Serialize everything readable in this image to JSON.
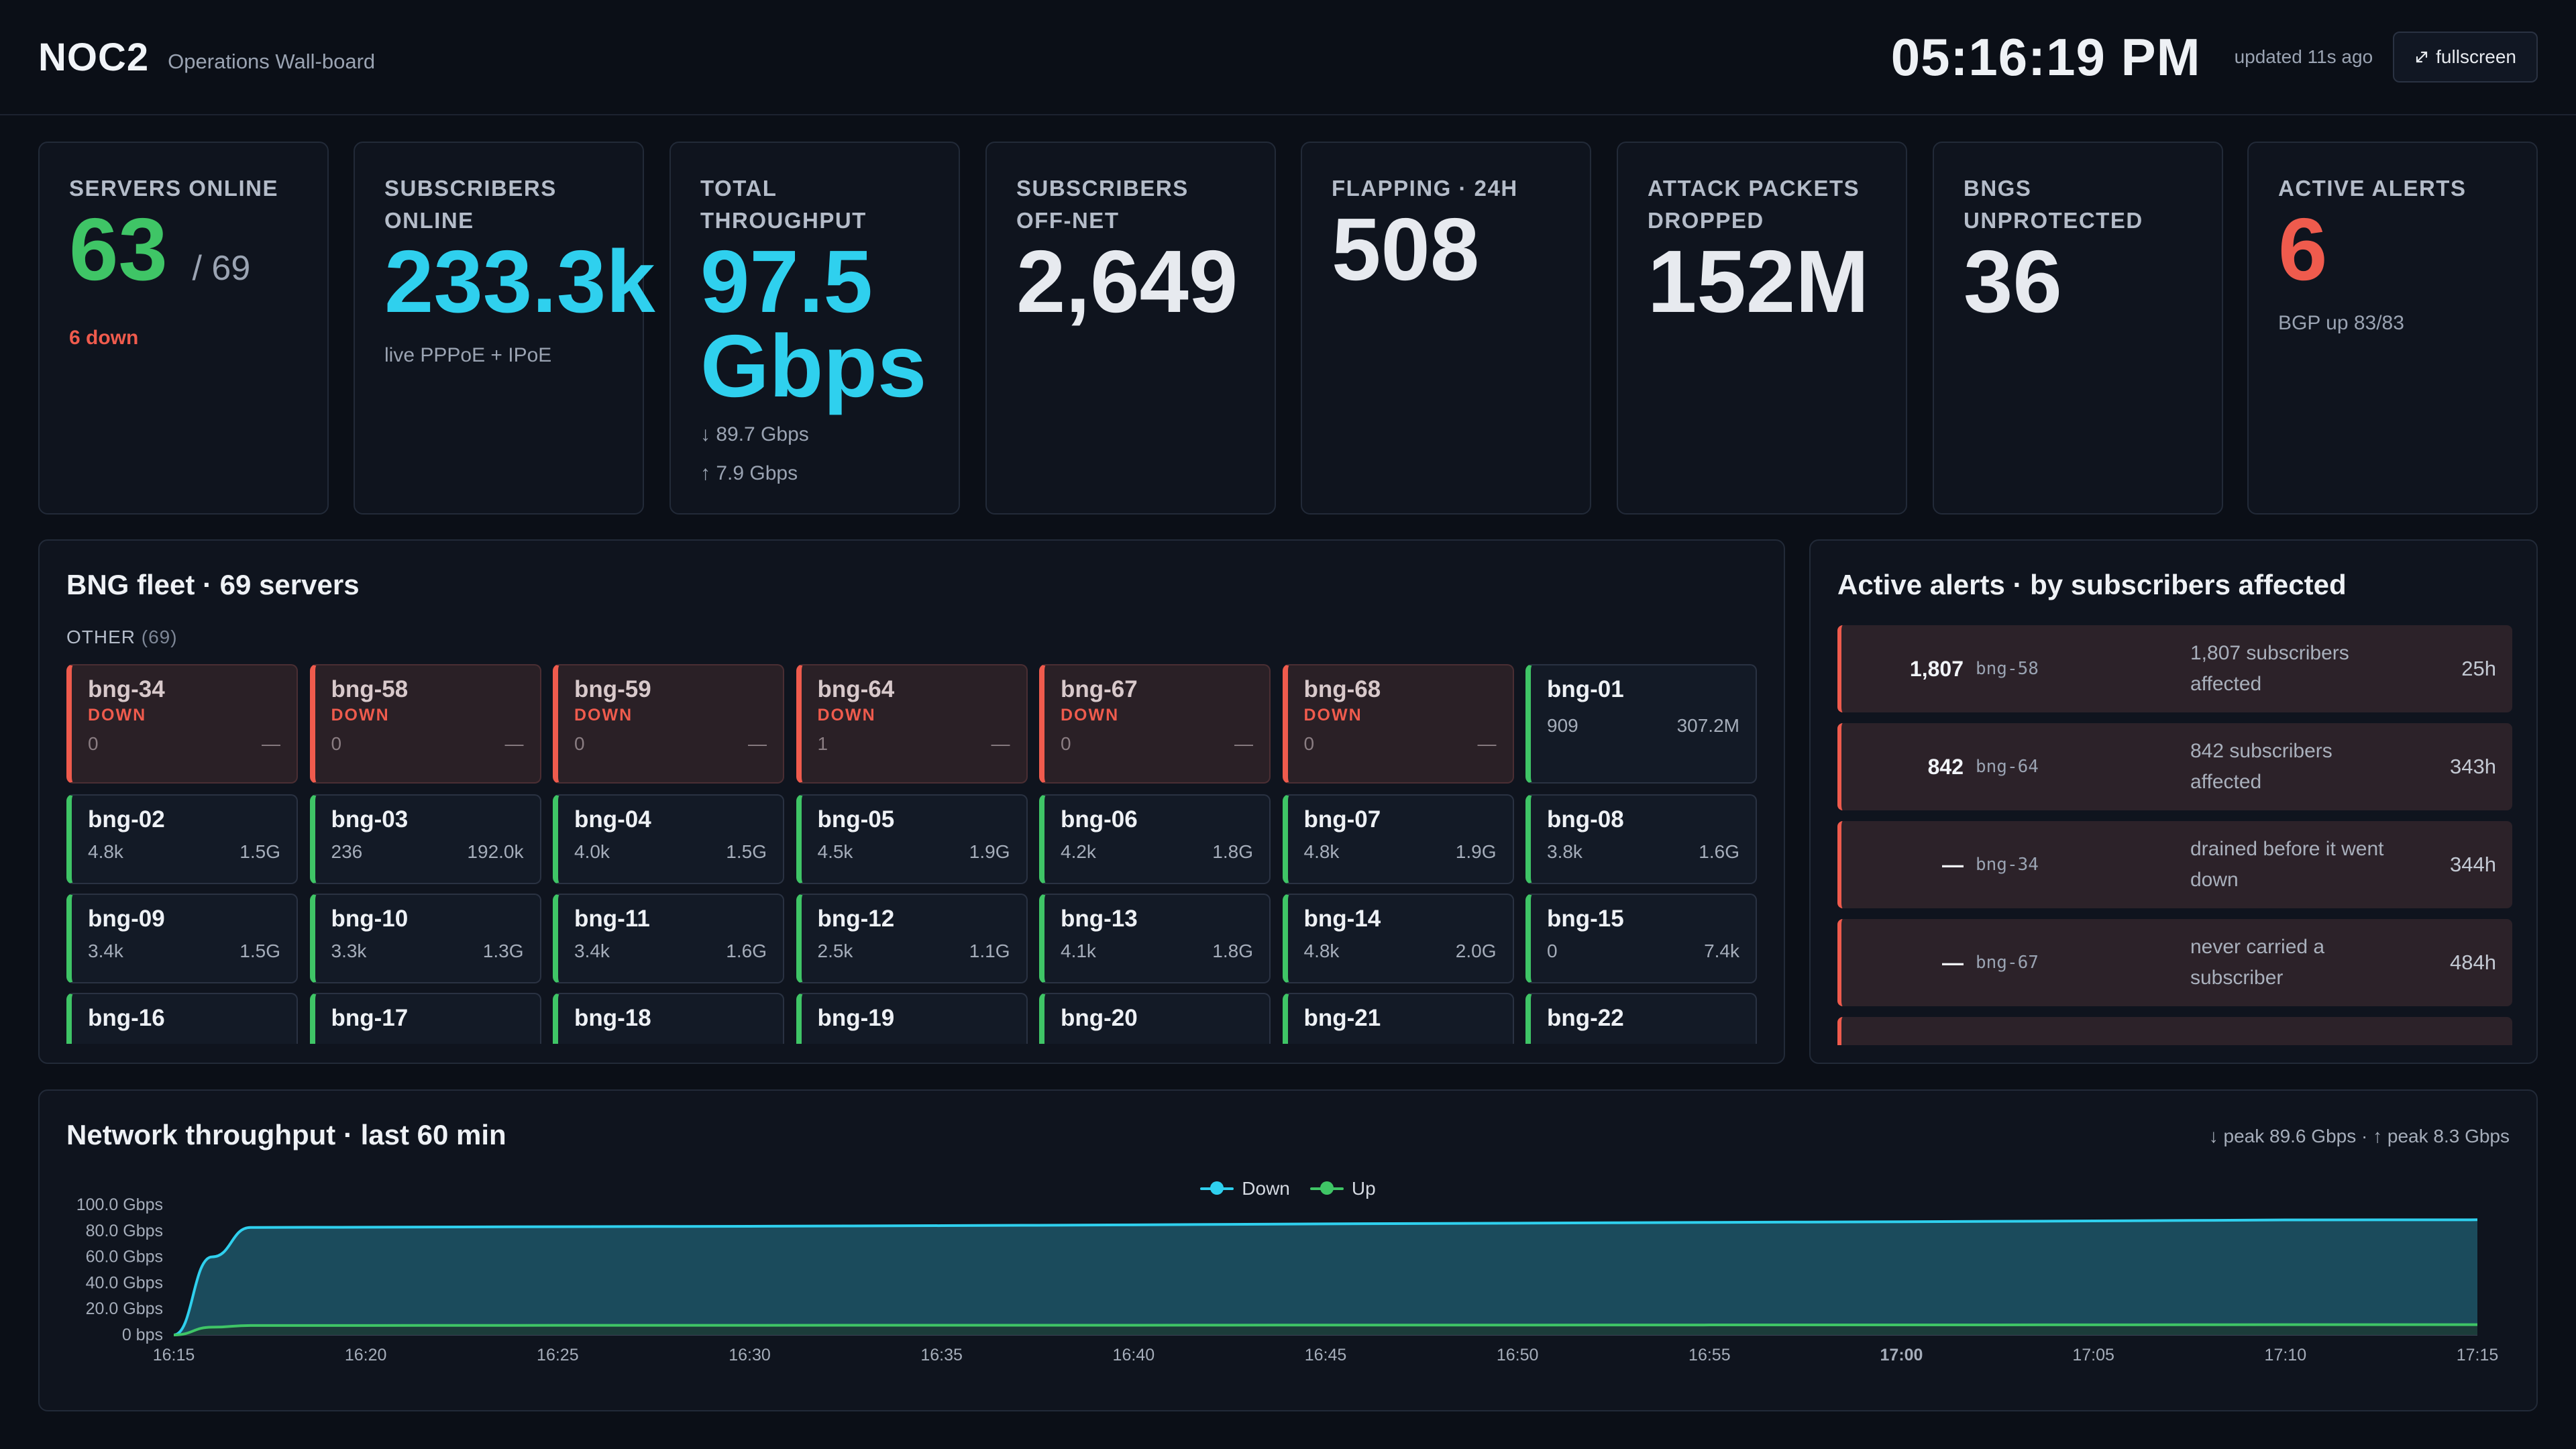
{
  "header": {
    "brand": "NOC2",
    "subtitle": "Operations Wall-board",
    "clock": "05:16:19 PM",
    "updated": "updated 11s ago",
    "fullscreen_label": "fullscreen",
    "fullscreen_icon": "expand-icon"
  },
  "kpis": [
    {
      "label": "Servers Online",
      "value": "63",
      "suffix": "/ 69",
      "sub": "6 down",
      "value_color": "#3fc566"
    },
    {
      "label": "Subscribers Online",
      "value": "233.3k",
      "sub": "live PPPoE + IPoE",
      "value_color": "#2fd0ee"
    },
    {
      "label": "Total Throughput",
      "value": "97.5 Gbps",
      "sub1": "↓ 89.7 Gbps",
      "sub2": "↑ 7.9 Gbps",
      "value_color": "#2fd0ee"
    },
    {
      "label": "Subscribers Off-net",
      "value": "2,649"
    },
    {
      "label": "Flapping · 24h",
      "value": "508"
    },
    {
      "label": "Attack Packets Dropped",
      "value": "152M"
    },
    {
      "label": "BNGs Unprotected",
      "value": "36"
    },
    {
      "label": "Active Alerts",
      "value": "6",
      "sub": "BGP up 83/83",
      "value_color": "#ef5b4d"
    }
  ],
  "fleet": {
    "title": "BNG fleet · 69 servers",
    "group_label": "OTHER",
    "group_count": "(69)",
    "tiles": [
      {
        "name": "bng-34",
        "status": "DOWN",
        "subs": "0",
        "tput": "—"
      },
      {
        "name": "bng-58",
        "status": "DOWN",
        "subs": "0",
        "tput": "—"
      },
      {
        "name": "bng-59",
        "status": "DOWN",
        "subs": "0",
        "tput": "—"
      },
      {
        "name": "bng-64",
        "status": "DOWN",
        "subs": "1",
        "tput": "—"
      },
      {
        "name": "bng-67",
        "status": "DOWN",
        "subs": "0",
        "tput": "—"
      },
      {
        "name": "bng-68",
        "status": "DOWN",
        "subs": "0",
        "tput": "—"
      },
      {
        "name": "bng-01",
        "status": "",
        "subs": "909",
        "tput": "307.2M"
      },
      {
        "name": "bng-02",
        "status": "",
        "subs": "4.8k",
        "tput": "1.5G"
      },
      {
        "name": "bng-03",
        "status": "",
        "subs": "236",
        "tput": "192.0k"
      },
      {
        "name": "bng-04",
        "status": "",
        "subs": "4.0k",
        "tput": "1.5G"
      },
      {
        "name": "bng-05",
        "status": "",
        "subs": "4.5k",
        "tput": "1.9G"
      },
      {
        "name": "bng-06",
        "status": "",
        "subs": "4.2k",
        "tput": "1.8G"
      },
      {
        "name": "bng-07",
        "status": "",
        "subs": "4.8k",
        "tput": "1.9G"
      },
      {
        "name": "bng-08",
        "status": "",
        "subs": "3.8k",
        "tput": "1.6G"
      },
      {
        "name": "bng-09",
        "status": "",
        "subs": "3.4k",
        "tput": "1.5G"
      },
      {
        "name": "bng-10",
        "status": "",
        "subs": "3.3k",
        "tput": "1.3G"
      },
      {
        "name": "bng-11",
        "status": "",
        "subs": "3.4k",
        "tput": "1.6G"
      },
      {
        "name": "bng-12",
        "status": "",
        "subs": "2.5k",
        "tput": "1.1G"
      },
      {
        "name": "bng-13",
        "status": "",
        "subs": "4.1k",
        "tput": "1.8G"
      },
      {
        "name": "bng-14",
        "status": "",
        "subs": "4.8k",
        "tput": "2.0G"
      },
      {
        "name": "bng-15",
        "status": "",
        "subs": "0",
        "tput": "7.4k"
      },
      {
        "name": "bng-16",
        "status": "",
        "subs": "",
        "tput": ""
      },
      {
        "name": "bng-17",
        "status": "",
        "subs": "",
        "tput": ""
      },
      {
        "name": "bng-18",
        "status": "",
        "subs": "",
        "tput": ""
      },
      {
        "name": "bng-19",
        "status": "",
        "subs": "",
        "tput": ""
      },
      {
        "name": "bng-20",
        "status": "",
        "subs": "",
        "tput": ""
      },
      {
        "name": "bng-21",
        "status": "",
        "subs": "",
        "tput": ""
      },
      {
        "name": "bng-22",
        "status": "",
        "subs": "",
        "tput": ""
      }
    ]
  },
  "alerts": {
    "title": "Active alerts · by subscribers affected",
    "items": [
      {
        "count": "1,807",
        "host": "bng-58",
        "desc": "1,807 subscribers affected",
        "age": "25h"
      },
      {
        "count": "842",
        "host": "bng-64",
        "desc": "842 subscribers affected",
        "age": "343h"
      },
      {
        "count": "—",
        "host": "bng-34",
        "desc": "drained before it went down",
        "age": "344h"
      },
      {
        "count": "—",
        "host": "bng-67",
        "desc": "never carried a subscriber",
        "age": "484h"
      },
      {
        "count": "",
        "host": "",
        "desc": "",
        "age": ""
      }
    ]
  },
  "throughput": {
    "title": "Network throughput · last 60 min",
    "peak": "↓ peak 89.6 Gbps · ↑ peak 8.3 Gbps"
  },
  "chart_data": {
    "type": "area",
    "title": "Network throughput · last 60 min",
    "xlabel": "",
    "ylabel": "",
    "x_ticks": [
      "16:15",
      "16:20",
      "16:25",
      "16:30",
      "16:35",
      "16:40",
      "16:45",
      "16:50",
      "16:55",
      "17:00",
      "17:05",
      "17:10",
      "17:15"
    ],
    "x_tick_bold": "17:00",
    "y_ticks": [
      "0 bps",
      "20.0 Gbps",
      "40.0 Gbps",
      "60.0 Gbps",
      "80.0 Gbps",
      "100.0 Gbps"
    ],
    "ylim": [
      0,
      100
    ],
    "legend_position": "top-center",
    "series": [
      {
        "name": "Down",
        "color": "#2fd0ee",
        "x": [
          "16:15",
          "16:16",
          "16:17",
          "16:20",
          "16:25",
          "16:30",
          "16:35",
          "16:40",
          "16:45",
          "16:50",
          "16:55",
          "17:00",
          "17:05",
          "17:10",
          "17:15"
        ],
        "values": [
          0,
          60.0,
          82.6,
          82.8,
          83.2,
          83.5,
          84.0,
          84.6,
          85.4,
          85.9,
          86.5,
          87.0,
          87.6,
          88.4,
          88.5
        ]
      },
      {
        "name": "Up",
        "color": "#3fc566",
        "x": [
          "16:15",
          "16:16",
          "16:17",
          "16:20",
          "16:25",
          "16:30",
          "16:35",
          "16:40",
          "16:45",
          "16:50",
          "16:55",
          "17:00",
          "17:05",
          "17:10",
          "17:15"
        ],
        "values": [
          0,
          6.0,
          7.3,
          7.3,
          7.4,
          7.4,
          7.5,
          7.5,
          7.6,
          7.6,
          7.7,
          7.7,
          7.8,
          7.9,
          7.9
        ]
      }
    ]
  }
}
